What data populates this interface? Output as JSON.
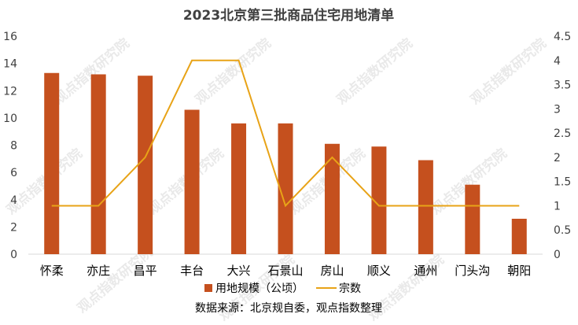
{
  "chart_data": {
    "type": "bar",
    "title": "2023北京第三批商品住宅用地清单",
    "categories": [
      "怀柔",
      "亦庄",
      "昌平",
      "丰台",
      "大兴",
      "石景山",
      "房山",
      "顺义",
      "通州",
      "门头沟",
      "朝阳"
    ],
    "series": [
      {
        "name": "用地规模（公顷）",
        "type": "bar",
        "axis": "left",
        "color": "#C5501E",
        "values": [
          13.3,
          13.2,
          13.1,
          10.6,
          9.6,
          9.6,
          8.1,
          7.9,
          6.9,
          5.1,
          2.6
        ]
      },
      {
        "name": "宗数",
        "type": "line",
        "axis": "right",
        "color": "#E8A317",
        "values": [
          1,
          1,
          2,
          4,
          4,
          1,
          2,
          1,
          1,
          1,
          1
        ]
      }
    ],
    "ylim_left": [
      0,
      16
    ],
    "yticks_left": [
      "0",
      "2",
      "4",
      "6",
      "8",
      "10",
      "12",
      "14",
      "16"
    ],
    "ylim_right": [
      0,
      4.5
    ],
    "yticks_right": [
      "0",
      "0.5",
      "1",
      "1.5",
      "2",
      "2.5",
      "3",
      "3.5",
      "4",
      "4.5"
    ],
    "legend_position": "bottom",
    "grid": false
  },
  "source_text": "数据来源：北京规自委，观点指数整理",
  "watermark_text": "观点指数研究院"
}
